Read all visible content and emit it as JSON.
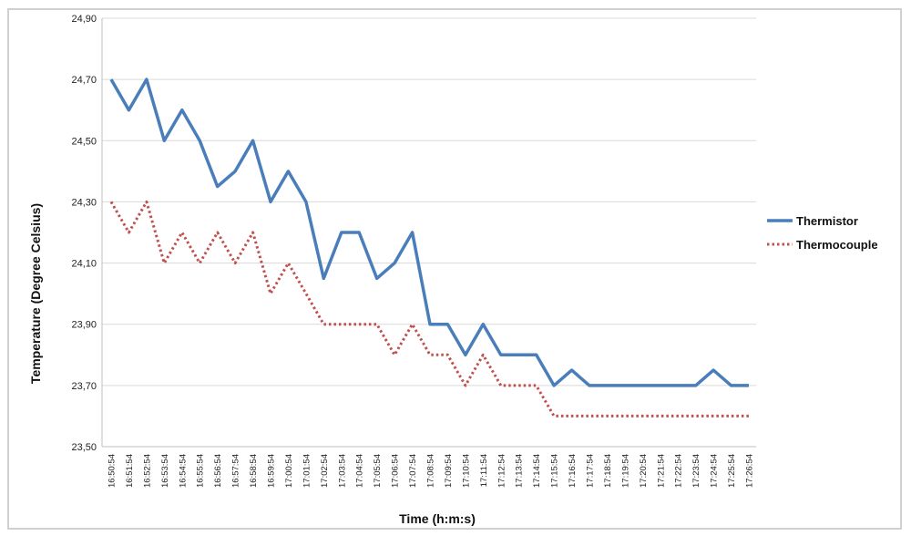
{
  "chart_data": {
    "type": "line",
    "title": "",
    "xlabel": "Time  (h:m:s)",
    "ylabel": "Temperature  (Degree  Celsius)",
    "ylim": [
      23.5,
      24.9
    ],
    "yticks": [
      "23,50",
      "23,70",
      "23,90",
      "24,10",
      "24,30",
      "24,50",
      "24,70",
      "24,90"
    ],
    "grid": "horizontal",
    "legend": "right",
    "categories": [
      "16:50:54",
      "16:51:54",
      "16:52:54",
      "16:53:54",
      "16:54:54",
      "16:55:54",
      "16:56:54",
      "16:57:54",
      "16:58:54",
      "16:59:54",
      "17:00:54",
      "17:01:54",
      "17:02:54",
      "17:03:54",
      "17:04:54",
      "17:05:54",
      "17:06:54",
      "17:07:54",
      "17:08:54",
      "17:09:54",
      "17:10:54",
      "17:11:54",
      "17:12:54",
      "17:13:54",
      "17:14:54",
      "17:15:54",
      "17:16:54",
      "17:17:54",
      "17:18:54",
      "17:19:54",
      "17:20:54",
      "17:21:54",
      "17:22:54",
      "17:23:54",
      "17:24:54",
      "17:25:54",
      "17:26:54"
    ],
    "series": [
      {
        "name": "Thermistor",
        "color": "#4a7ebb",
        "style": "solid",
        "values": [
          24.7,
          24.6,
          24.7,
          24.5,
          24.6,
          24.5,
          24.35,
          24.4,
          24.5,
          24.3,
          24.4,
          24.3,
          24.05,
          24.2,
          24.2,
          24.05,
          24.1,
          24.2,
          23.9,
          23.9,
          23.8,
          23.9,
          23.8,
          23.8,
          23.8,
          23.7,
          23.75,
          23.7,
          23.7,
          23.7,
          23.7,
          23.7,
          23.7,
          23.7,
          23.75,
          23.7,
          23.7
        ]
      },
      {
        "name": "Thermocouple",
        "color": "#c0504d",
        "style": "dotted",
        "values": [
          24.3,
          24.2,
          24.3,
          24.1,
          24.2,
          24.1,
          24.2,
          24.1,
          24.2,
          24.0,
          24.1,
          24.0,
          23.9,
          23.9,
          23.9,
          23.9,
          23.8,
          23.9,
          23.8,
          23.8,
          23.7,
          23.8,
          23.7,
          23.7,
          23.7,
          23.6,
          23.6,
          23.6,
          23.6,
          23.6,
          23.6,
          23.6,
          23.6,
          23.6,
          23.6,
          23.6,
          23.6
        ]
      }
    ]
  }
}
